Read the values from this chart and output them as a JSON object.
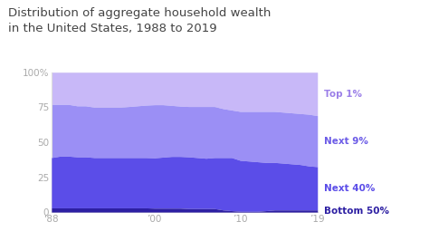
{
  "title": "Distribution of aggregate household wealth\nin the United States, 1988 to 2019",
  "title_fontsize": 9.5,
  "title_color": "#444444",
  "background_color": "#ffffff",
  "years": [
    1988,
    1989,
    1990,
    1991,
    1992,
    1993,
    1994,
    1995,
    1996,
    1997,
    1998,
    1999,
    2000,
    2001,
    2002,
    2003,
    2004,
    2005,
    2006,
    2007,
    2008,
    2009,
    2010,
    2011,
    2012,
    2013,
    2014,
    2015,
    2016,
    2017,
    2018,
    2019
  ],
  "bottom50": [
    3.0,
    3.0,
    3.0,
    3.0,
    3.0,
    3.0,
    3.0,
    3.0,
    3.0,
    3.0,
    3.0,
    3.0,
    2.8,
    2.8,
    2.8,
    2.8,
    2.5,
    2.5,
    2.5,
    2.5,
    1.5,
    1.0,
    0.5,
    0.5,
    0.5,
    1.0,
    1.5,
    1.5,
    1.5,
    1.5,
    1.5,
    1.5
  ],
  "next40": [
    36.0,
    37.0,
    37.0,
    36.5,
    36.5,
    36.0,
    36.0,
    36.0,
    36.0,
    36.0,
    36.0,
    36.0,
    36.0,
    36.5,
    37.0,
    37.0,
    37.0,
    36.5,
    36.0,
    36.5,
    37.5,
    38.0,
    36.5,
    36.0,
    35.5,
    34.5,
    34.0,
    33.5,
    33.0,
    32.5,
    31.5,
    31.0
  ],
  "next9": [
    38.0,
    37.0,
    37.0,
    36.5,
    36.5,
    36.0,
    36.0,
    36.0,
    36.0,
    36.5,
    37.0,
    37.5,
    38.0,
    37.5,
    36.5,
    36.0,
    36.0,
    36.5,
    37.0,
    36.5,
    35.0,
    34.0,
    35.0,
    35.5,
    36.0,
    36.5,
    36.5,
    36.5,
    36.5,
    36.5,
    37.0,
    36.5
  ],
  "top1": [
    23.0,
    23.0,
    23.0,
    24.0,
    24.0,
    25.0,
    25.0,
    25.0,
    25.0,
    24.5,
    24.0,
    23.5,
    23.2,
    23.2,
    23.7,
    24.2,
    24.5,
    24.5,
    24.5,
    24.5,
    26.0,
    27.0,
    28.0,
    28.0,
    28.0,
    28.0,
    28.0,
    28.5,
    29.0,
    29.5,
    30.0,
    31.0
  ],
  "colors": {
    "bottom50": "#2d1fa3",
    "next40": "#5b4de8",
    "next9": "#9b8ff5",
    "top1": "#c8b8f8"
  },
  "yticks": [
    0,
    25,
    50,
    75,
    100
  ],
  "ytick_labels": [
    "0",
    "25",
    "50",
    "75",
    "100%"
  ],
  "xtick_positions": [
    1988,
    2000,
    2010,
    2019
  ],
  "xtick_labels": [
    "‘88",
    "’00",
    "’10",
    "’19"
  ],
  "labels": {
    "top1": "Top 1%",
    "next9": "Next 9%",
    "next40": "Next 40%",
    "bottom50": "Bottom 50%"
  },
  "label_colors": {
    "top1": "#9b7fe8",
    "next9": "#6c5ce7",
    "next40": "#5b4de8",
    "bottom50": "#2d1fa3"
  }
}
